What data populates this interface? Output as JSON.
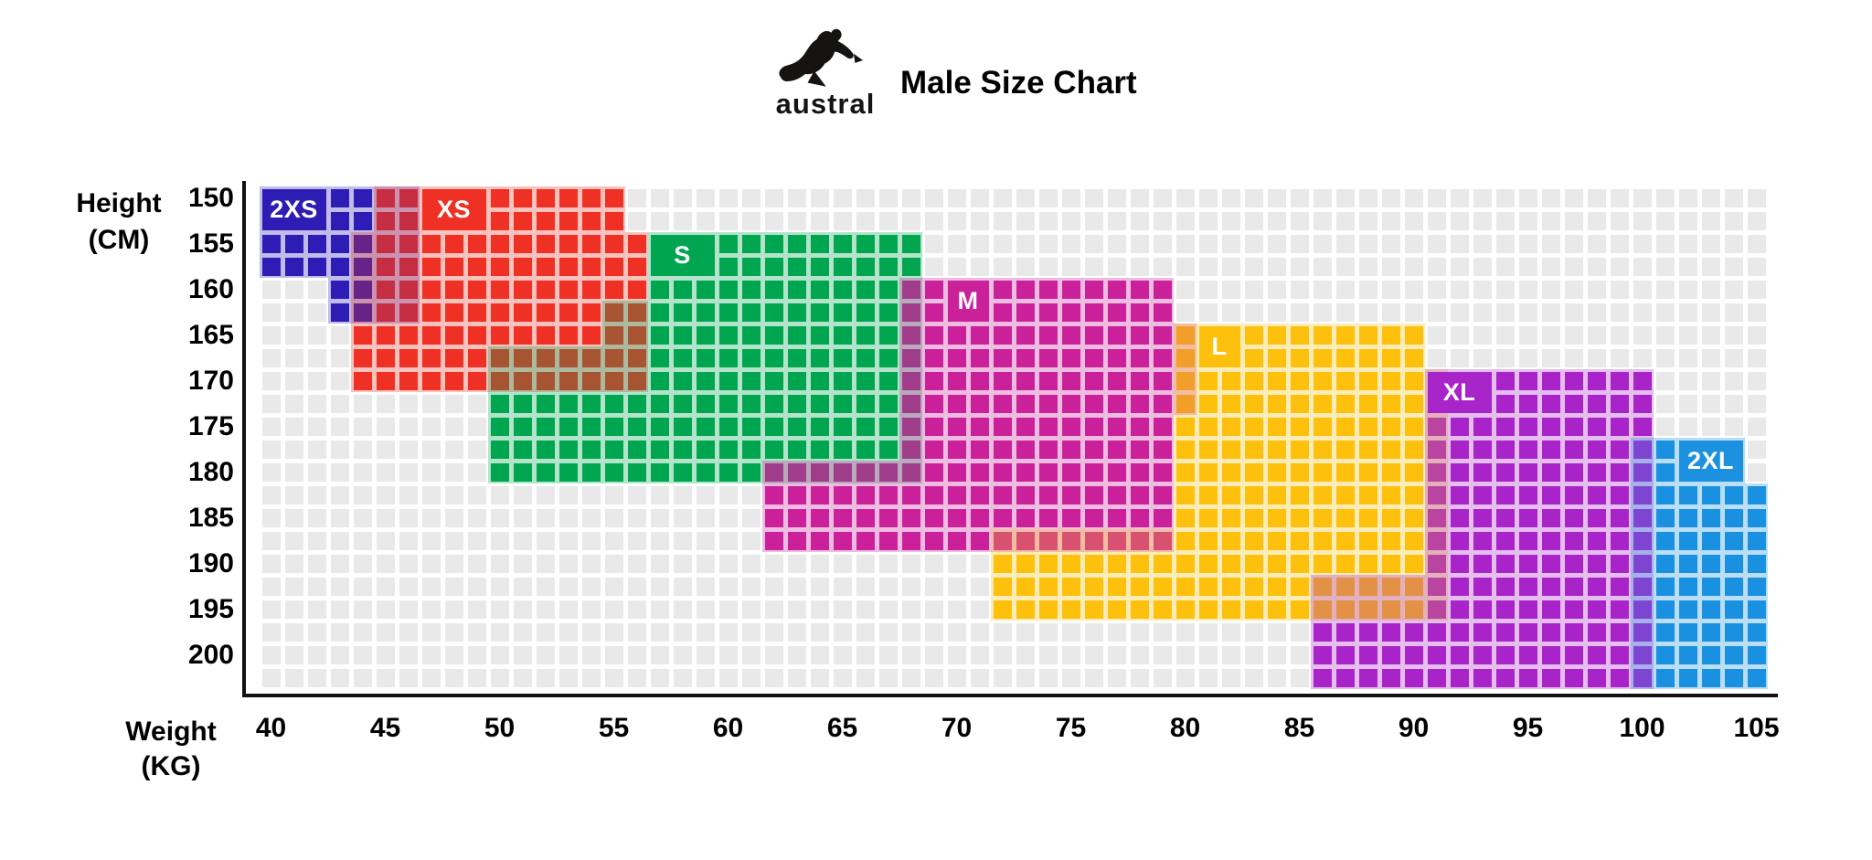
{
  "header": {
    "brand_wordmark": "austral",
    "title": "Male Size Chart"
  },
  "axes": {
    "y_title_line1": "Height",
    "y_title_line2": "(CM)",
    "x_title_line1": "Weight",
    "x_title_line2": "(KG)",
    "y_ticks": [
      "150",
      "155",
      "160",
      "165",
      "170",
      "175",
      "180",
      "185",
      "190",
      "195",
      "200"
    ],
    "x_ticks": [
      "40",
      "45",
      "50",
      "55",
      "60",
      "65",
      "70",
      "75",
      "80",
      "85",
      "90",
      "95",
      "100",
      "105"
    ]
  },
  "chart_data": {
    "type": "heatmap",
    "title": "Male Size Chart",
    "xlabel": "Weight (KG)",
    "ylabel": "Height (CM)",
    "x_range": [
      40,
      105
    ],
    "x_cell_step_kg": 1,
    "y_range": [
      150,
      202.5
    ],
    "y_cell_step_cm": 2.5,
    "grid": {
      "cols": 66,
      "rows": 22,
      "empty_cell_color": "#e9e9e9"
    },
    "legend_position": "labels-inside-regions",
    "sizes": [
      {
        "id": "2xs",
        "label": "2XS",
        "color": "#2e1db5",
        "weight_kg": [
          40,
          46
        ],
        "height_cm": [
          150,
          162.5
        ],
        "label_box": {
          "w": [
            40,
            42
          ],
          "r": [
            0,
            1
          ]
        },
        "squares": [
          {
            "r": [
              0,
              3
            ],
            "w": [
              40,
              44
            ]
          },
          {
            "r": [
              4,
              5
            ],
            "w": [
              43,
              44
            ]
          }
        ],
        "tints": [
          {
            "r": [
              0,
              3
            ],
            "w": [
              40,
              46
            ]
          },
          {
            "r": [
              4,
              5
            ],
            "w": [
              43,
              46
            ]
          }
        ]
      },
      {
        "id": "xs",
        "label": "XS",
        "color": "#ee3124",
        "weight_kg": [
          44,
          56
        ],
        "height_cm": [
          150,
          170
        ],
        "label_box": {
          "w": [
            47,
            49
          ],
          "r": [
            0,
            1
          ]
        },
        "squares": [
          {
            "r": [
              0,
              1
            ],
            "w": [
              45,
              55
            ]
          },
          {
            "r": [
              2,
              5
            ],
            "w": [
              45,
              56
            ]
          },
          {
            "r": [
              6,
              8
            ],
            "w": [
              44,
              56
            ]
          }
        ],
        "tints": [
          {
            "r": [
              0,
              1
            ],
            "w": [
              45,
              55
            ]
          },
          {
            "r": [
              2,
              8
            ],
            "w": [
              44,
              56
            ]
          }
        ]
      },
      {
        "id": "s",
        "label": "S",
        "color": "#00a551",
        "weight_kg": [
          50,
          68
        ],
        "height_cm": [
          155,
          180
        ],
        "label_box": {
          "w": [
            57,
            59
          ],
          "r": [
            2,
            3
          ]
        },
        "squares": [
          {
            "r": [
              2,
              3
            ],
            "w": [
              57,
              68
            ]
          },
          {
            "r": [
              4,
              8
            ],
            "w": [
              57,
              67
            ]
          },
          {
            "r": [
              9,
              11
            ],
            "w": [
              50,
              67
            ]
          },
          {
            "r": [
              12,
              12
            ],
            "w": [
              50,
              61
            ]
          }
        ],
        "tints": [
          {
            "r": [
              2,
              4
            ],
            "w": [
              57,
              68
            ]
          },
          {
            "r": [
              5,
              6
            ],
            "w": [
              55,
              68
            ]
          },
          {
            "r": [
              7,
              12
            ],
            "w": [
              50,
              68
            ]
          }
        ]
      },
      {
        "id": "m",
        "label": "M",
        "color": "#ca219b",
        "weight_kg": [
          62,
          80
        ],
        "height_cm": [
          160,
          187.5
        ],
        "label_box": {
          "w": [
            70,
            71
          ],
          "r": [
            4,
            5
          ]
        },
        "squares": [
          {
            "r": [
              4,
              11
            ],
            "w": [
              68,
              79
            ]
          },
          {
            "r": [
              12,
              15
            ],
            "w": [
              62,
              79
            ]
          }
        ],
        "tints": [
          {
            "r": [
              4,
              5
            ],
            "w": [
              68,
              79
            ]
          },
          {
            "r": [
              6,
              9
            ],
            "w": [
              68,
              80
            ]
          },
          {
            "r": [
              10,
              11
            ],
            "w": [
              68,
              79
            ]
          },
          {
            "r": [
              12,
              15
            ],
            "w": [
              62,
              79
            ]
          }
        ]
      },
      {
        "id": "l",
        "label": "L",
        "color": "#fdc00d",
        "weight_kg": [
          72,
          91
        ],
        "height_cm": [
          165,
          195
        ],
        "label_box": {
          "w": [
            81,
            82
          ],
          "r": [
            6,
            7
          ]
        },
        "squares": [
          {
            "r": [
              6,
              15
            ],
            "w": [
              80,
              90
            ]
          },
          {
            "r": [
              16,
              18
            ],
            "w": [
              72,
              90
            ]
          }
        ],
        "tints": [
          {
            "r": [
              6,
              7
            ],
            "w": [
              80,
              90
            ]
          },
          {
            "r": [
              8,
              14
            ],
            "w": [
              80,
              91
            ]
          },
          {
            "r": [
              15,
              18
            ],
            "w": [
              72,
              91
            ]
          }
        ]
      },
      {
        "id": "xl",
        "label": "XL",
        "color": "#a825c9",
        "weight_kg": [
          86,
          100
        ],
        "height_cm": [
          170,
          202.5
        ],
        "label_box": {
          "w": [
            91,
            93
          ],
          "r": [
            8,
            9
          ]
        },
        "squares": [
          {
            "r": [
              8,
              18
            ],
            "w": [
              91,
              100
            ]
          },
          {
            "r": [
              19,
              21
            ],
            "w": [
              86,
              100
            ]
          }
        ],
        "tints": [
          {
            "r": [
              8,
              16
            ],
            "w": [
              91,
              100
            ]
          },
          {
            "r": [
              17,
              21
            ],
            "w": [
              86,
              100
            ]
          }
        ]
      },
      {
        "id": "2xl",
        "label": "2XL",
        "color": "#1b91e0",
        "weight_kg": [
          100,
          105
        ],
        "height_cm": [
          177.5,
          202.5
        ],
        "label_box": {
          "w": [
            102,
            104
          ],
          "r": [
            11,
            12
          ]
        },
        "squares": [
          {
            "r": [
              11,
              12
            ],
            "w": [
              101,
              104
            ]
          },
          {
            "r": [
              13,
              21
            ],
            "w": [
              101,
              105
            ]
          }
        ],
        "tints": [
          {
            "r": [
              11,
              12
            ],
            "w": [
              100,
              104
            ]
          },
          {
            "r": [
              13,
              21
            ],
            "w": [
              100,
              105
            ]
          }
        ]
      }
    ]
  }
}
